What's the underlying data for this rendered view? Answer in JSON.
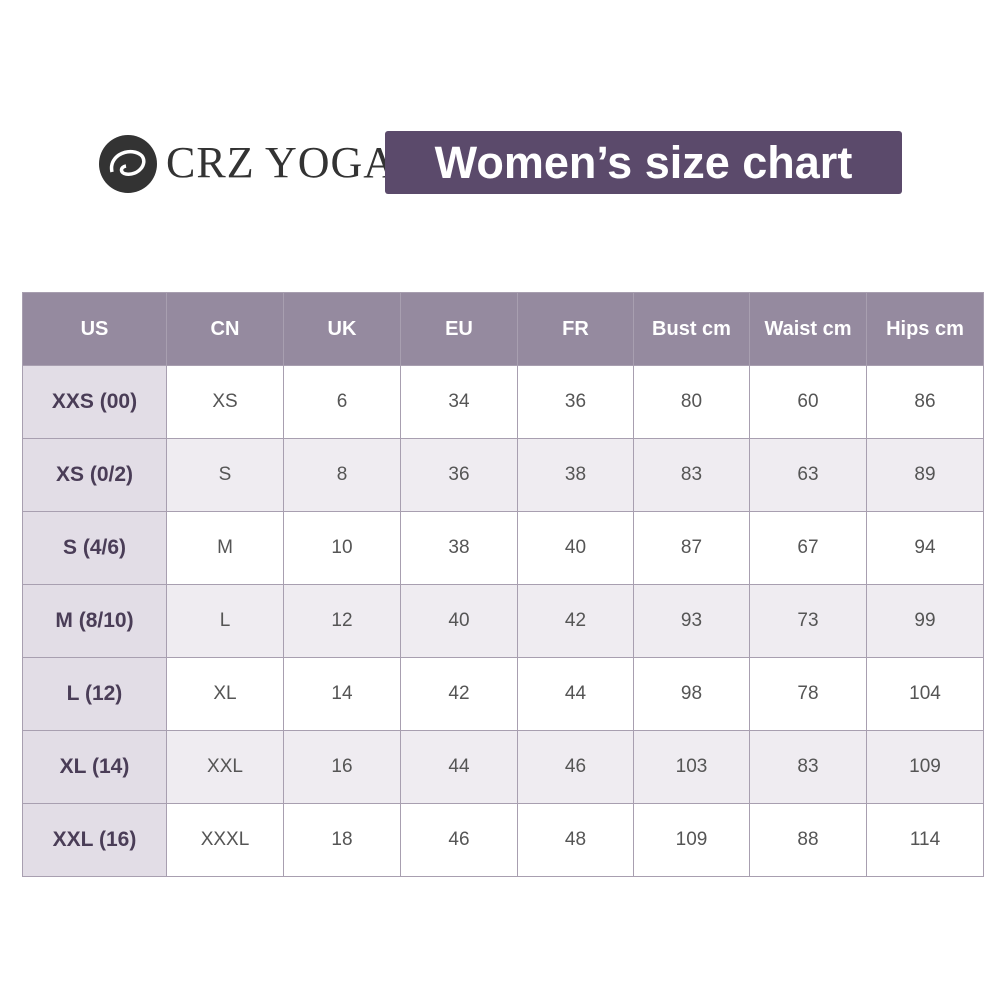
{
  "header": {
    "brand": "CRZ YOGA",
    "title": "Women’s size chart"
  },
  "table": {
    "columns": [
      "US",
      "CN",
      "UK",
      "EU",
      "FR",
      "Bust cm",
      "Waist cm",
      "Hips cm"
    ],
    "rows": [
      [
        "XXS (00)",
        "XS",
        6,
        34,
        36,
        80,
        60,
        86
      ],
      [
        "XS (0/2)",
        "S",
        8,
        36,
        38,
        83,
        63,
        89
      ],
      [
        "S (4/6)",
        "M",
        10,
        38,
        40,
        87,
        67,
        94
      ],
      [
        "M (8/10)",
        "L",
        12,
        40,
        42,
        93,
        73,
        99
      ],
      [
        "L (12)",
        "XL",
        14,
        42,
        44,
        98,
        78,
        104
      ],
      [
        "XL (14)",
        "XXL",
        16,
        44,
        46,
        103,
        83,
        109
      ],
      [
        "XXL (16)",
        "XXXL",
        18,
        46,
        48,
        109,
        88,
        114
      ]
    ]
  }
}
